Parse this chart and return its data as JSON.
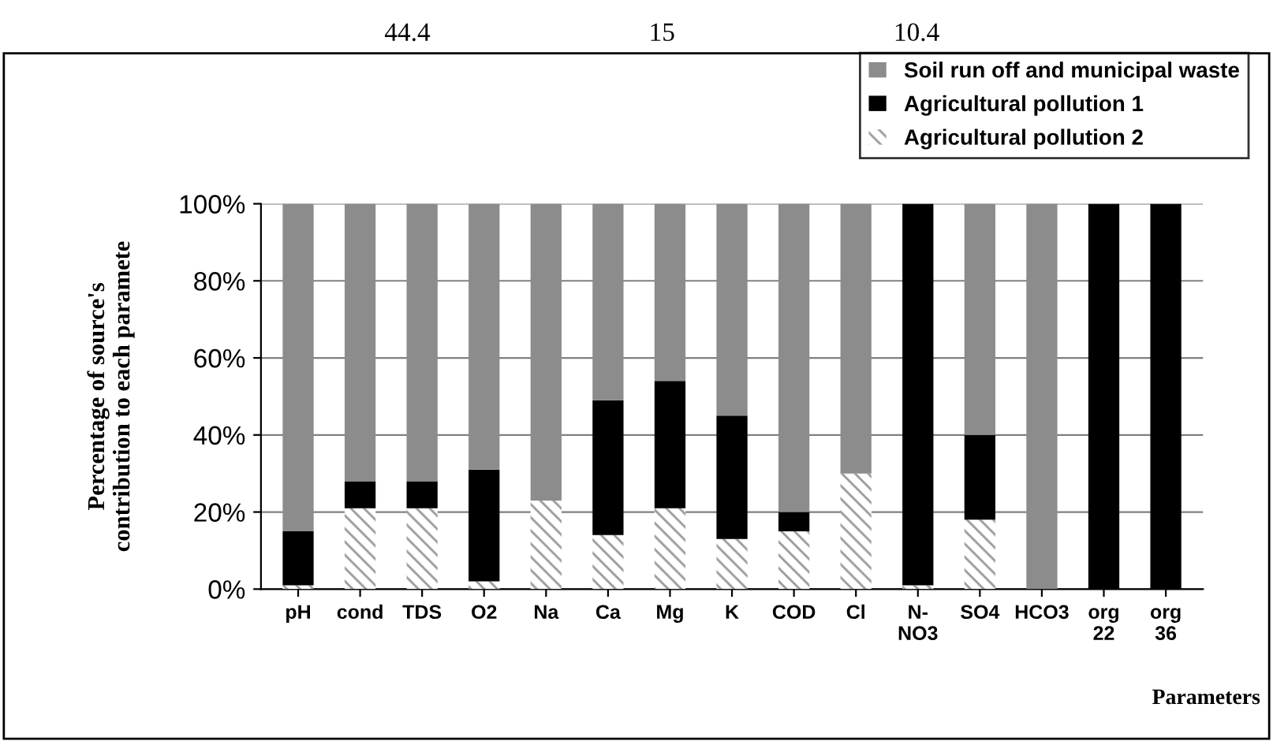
{
  "chart_data": {
    "type": "bar",
    "stacked": true,
    "categories": [
      "pH",
      "cond",
      "TDS",
      "O2",
      "Na",
      "Ca",
      "Mg",
      "K",
      "COD",
      "Cl",
      "N-\nNO3",
      "SO4",
      "HCO3",
      "org\n22",
      "org\n36"
    ],
    "series": [
      {
        "name": "Agricultural pollution 2",
        "color": "#ffffff",
        "values": [
          1,
          21,
          21,
          2,
          23,
          14,
          21,
          13,
          15,
          30,
          1,
          18,
          0,
          0,
          0
        ]
      },
      {
        "name": "Agricultural pollution 1",
        "color": "#000000",
        "values": [
          14,
          7,
          7,
          29,
          0,
          35,
          33,
          32,
          5,
          0,
          99,
          22,
          0,
          100,
          100
        ]
      },
      {
        "name": "Soil run off and municipal waste",
        "color": "#8c8c8c",
        "values": [
          85,
          72,
          72,
          69,
          77,
          51,
          46,
          55,
          80,
          70,
          0,
          60,
          100,
          0,
          0
        ]
      }
    ],
    "ylim": [
      0,
      100
    ],
    "yticks": [
      {
        "value": 0,
        "label": "0%"
      },
      {
        "value": 20,
        "label": "20%"
      },
      {
        "value": 40,
        "label": "40%"
      },
      {
        "value": 60,
        "label": "60%"
      },
      {
        "value": 80,
        "label": "80%"
      },
      {
        "value": 100,
        "label": "100%"
      }
    ],
    "grid": "y",
    "legend": "top right",
    "xlabel": "Parameters",
    "ylabel": "Percentage of source's\ncontribution to each paramete",
    "annotations": [
      "44.4",
      "15",
      "10.4"
    ]
  }
}
